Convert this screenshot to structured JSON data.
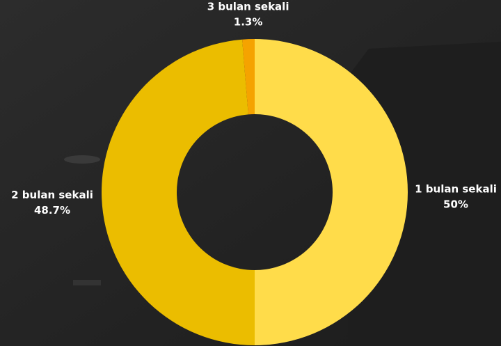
{
  "chart_data": {
    "type": "donut",
    "categories": [
      "1 bulan sekali",
      "2 bulan sekali",
      "3 bulan sekali"
    ],
    "values": [
      50,
      48.7,
      1.3
    ],
    "value_labels": [
      "50%",
      "48.7%",
      "1.3%"
    ],
    "colors": [
      "#ffdc4a",
      "#ebbd00",
      "#f5a300"
    ]
  }
}
